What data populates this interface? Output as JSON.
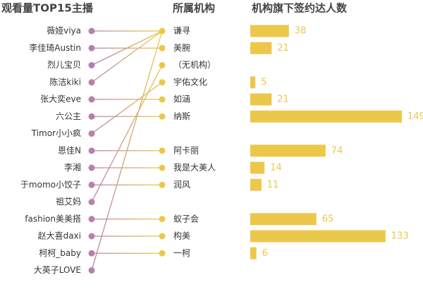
{
  "chart_data": {
    "type": "link-bar",
    "headers": [
      "观看量TOP15主播",
      "所属机构",
      "机构旗下签约达人数"
    ],
    "streamers": [
      "薇娅viya",
      "李佳琦Austin",
      "烈儿宝贝",
      "陈洁kiki",
      "张大奕eve",
      "六公主",
      "Timor小小疯",
      "恩佳N",
      "李湘",
      "于momo小饺子",
      "祖艾妈",
      "fashion美美搭",
      "赵大喜daxi",
      "柯柯_baby",
      "大英子LOVE"
    ],
    "links": [
      0,
      1,
      0,
      0,
      4,
      5,
      3,
      7,
      8,
      9,
      2,
      11,
      12,
      13,
      0
    ],
    "agencies": [
      "谦寻",
      "美腕",
      "（无机构）",
      "宇佑文化",
      "如涵",
      "纳斯",
      null,
      "阿卡丽",
      "我是大美人",
      "润风",
      null,
      "蚁子会",
      "构美",
      "一柯",
      null
    ],
    "values": [
      38,
      21,
      null,
      5,
      21,
      149,
      null,
      74,
      14,
      11,
      null,
      65,
      133,
      6,
      null
    ],
    "colors": {
      "streamer": "#b681a8",
      "agency": "#ecc84a"
    }
  }
}
